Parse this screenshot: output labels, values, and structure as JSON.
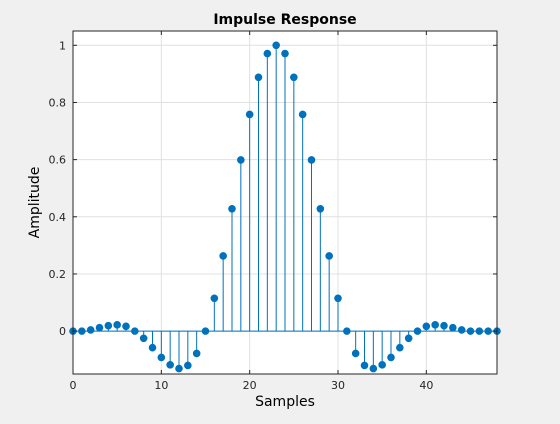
{
  "chart_data": {
    "type": "stem",
    "title": "Impulse Response",
    "xlabel": "Samples",
    "ylabel": "Amplitude",
    "xlim": [
      0,
      48
    ],
    "ylim": [
      -0.15,
      1.05
    ],
    "xticks": [
      0,
      10,
      20,
      30,
      40
    ],
    "yticks": [
      0,
      0.2,
      0.4,
      0.6,
      0.8,
      1
    ],
    "xtick_labels": [
      "0",
      "10",
      "20",
      "30",
      "40"
    ],
    "ytick_labels": [
      "0",
      "0.2",
      "0.4",
      "0.6",
      "0.8",
      "1"
    ],
    "grid": true,
    "color": "#0072BD",
    "x": [
      0,
      1,
      2,
      3,
      4,
      5,
      6,
      7,
      8,
      9,
      10,
      11,
      12,
      13,
      14,
      15,
      16,
      17,
      18,
      19,
      20,
      21,
      22,
      23,
      24,
      25,
      26,
      27,
      28,
      29,
      30,
      31,
      32,
      33,
      34,
      35,
      36,
      37,
      38,
      39,
      40,
      41,
      42,
      43,
      44,
      45,
      46,
      47,
      48
    ],
    "values": [
      0.0,
      0.0,
      0.004,
      0.012,
      0.019,
      0.022,
      0.017,
      0.0,
      -0.025,
      -0.058,
      -0.092,
      -0.118,
      -0.131,
      -0.12,
      -0.078,
      0.0,
      0.115,
      0.263,
      0.428,
      0.599,
      0.758,
      0.888,
      0.971,
      1.0,
      0.971,
      0.888,
      0.758,
      0.599,
      0.428,
      0.263,
      0.115,
      0.0,
      -0.078,
      -0.12,
      -0.131,
      -0.118,
      -0.092,
      -0.058,
      -0.025,
      0.0,
      0.017,
      0.022,
      0.019,
      0.012,
      0.004,
      0.0,
      0.0,
      0.0,
      0.0
    ]
  }
}
